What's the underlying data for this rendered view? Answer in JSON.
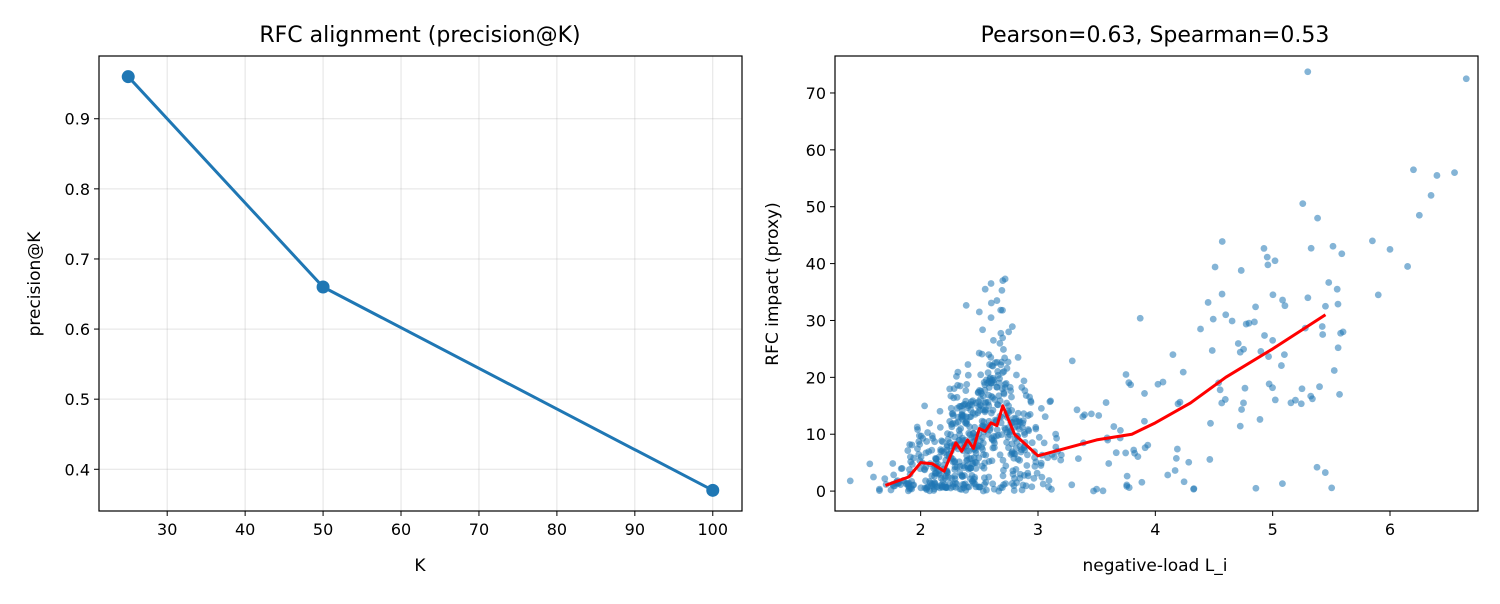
{
  "chart_data": [
    {
      "type": "line",
      "title": "RFC alignment (precision@K)",
      "xlabel": "K",
      "ylabel": "precision@K",
      "xlim": [
        21.25,
        103.75
      ],
      "ylim": [
        0.3405,
        0.9895
      ],
      "xticks": [
        30,
        40,
        50,
        60,
        70,
        80,
        90,
        100
      ],
      "yticks": [
        0.4,
        0.5,
        0.6,
        0.7,
        0.8,
        0.9
      ],
      "grid": true,
      "color": "#1f77b4",
      "series": [
        {
          "x": [
            25,
            50,
            100
          ],
          "y": [
            0.96,
            0.66,
            0.37
          ]
        }
      ]
    },
    {
      "type": "scatter",
      "title": "Pearson=0.63, Spearman=0.53",
      "xlabel": "negative-load L_i",
      "ylabel": "RFC impact (proxy)",
      "xlim": [
        1.27,
        6.75
      ],
      "ylim": [
        -3.5,
        76.5
      ],
      "xticks": [
        2,
        3,
        4,
        5,
        6
      ],
      "yticks": [
        0,
        10,
        20,
        30,
        40,
        50,
        60,
        70
      ],
      "grid": false,
      "point_color": "#1f77b4",
      "trend_color": "#ff0000",
      "trend": {
        "x": [
          1.7,
          1.9,
          2.0,
          2.1,
          2.2,
          2.3,
          2.35,
          2.4,
          2.45,
          2.5,
          2.55,
          2.6,
          2.65,
          2.7,
          2.8,
          3.0,
          3.5,
          3.8,
          4.0,
          4.3,
          4.6,
          5.0,
          5.45
        ],
        "y": [
          1.0,
          2.5,
          5.0,
          4.8,
          3.5,
          8.5,
          7.0,
          9.0,
          7.5,
          11.0,
          10.5,
          12.0,
          11.5,
          15.0,
          10.0,
          6.2,
          9.0,
          10.0,
          12.0,
          15.5,
          20.0,
          25.0,
          31.0
        ]
      },
      "outliers": {
        "x": [
          1.4,
          2.5,
          2.55,
          2.6,
          2.65,
          2.7,
          2.72,
          2.75,
          2.6,
          2.62,
          2.58,
          5.1,
          5.25,
          5.3,
          5.45,
          5.55,
          5.6,
          5.85,
          5.9,
          6.0,
          6.15,
          6.2,
          6.25,
          6.35,
          6.4,
          6.55,
          6.65,
          4.6,
          5.0,
          3.75,
          4.15
        ],
        "y": [
          1.8,
          31.5,
          35.5,
          36.5,
          33.5,
          37.0,
          37.3,
          28.0,
          30.5,
          26.5,
          24.0,
          24.0,
          18.0,
          34.0,
          32.5,
          35.5,
          28.0,
          44.0,
          34.5,
          42.5,
          39.5,
          56.5,
          48.5,
          52.0,
          55.5,
          56.0,
          72.5,
          31.0,
          26.5,
          20.5,
          24.0
        ]
      }
    }
  ]
}
